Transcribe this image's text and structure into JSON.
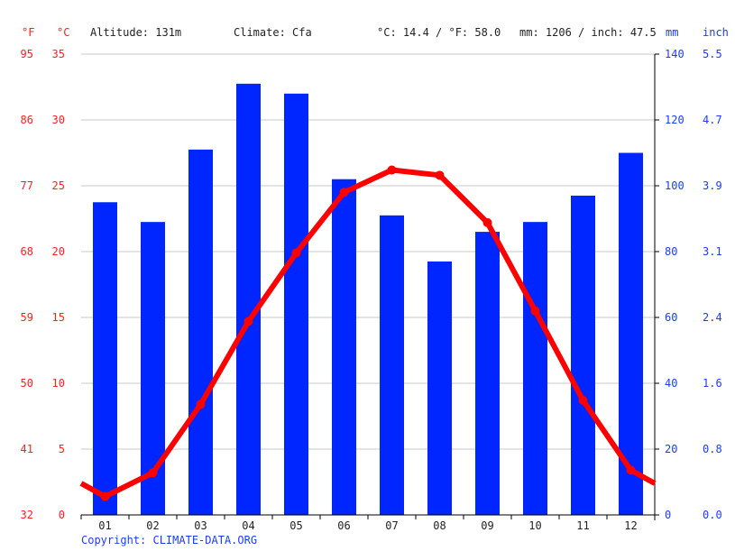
{
  "header": {
    "unit_f": "°F",
    "unit_c": "°C",
    "altitude": "Altitude: 131m",
    "climate": "Climate: Cfa",
    "temp_avg": "°C: 14.4 / °F: 58.0",
    "precip_total": "mm: 1206 / inch: 47.5",
    "unit_mm": "mm",
    "unit_inch": "inch"
  },
  "footer": {
    "copyright": "Copyright: CLIMATE-DATA.ORG"
  },
  "colors": {
    "temperature": "#ff0000",
    "precipitation": "#0026ff",
    "grid": "#c8c8c8",
    "axis": "#000000"
  },
  "chart_data": {
    "type": "bar+line",
    "title": "",
    "categories": [
      "01",
      "02",
      "03",
      "04",
      "05",
      "06",
      "07",
      "08",
      "09",
      "10",
      "11",
      "12"
    ],
    "series": [
      {
        "name": "Precipitation (mm)",
        "type": "bar",
        "axis": "right",
        "values": [
          95,
          89,
          111,
          131,
          128,
          102,
          91,
          77,
          86,
          89,
          97,
          110
        ]
      },
      {
        "name": "Temperature (°C)",
        "type": "line",
        "axis": "left",
        "values": [
          1.4,
          3.2,
          8.4,
          14.7,
          19.9,
          24.5,
          26.2,
          25.8,
          22.2,
          15.5,
          8.7,
          3.4
        ]
      }
    ],
    "left_axis_c": {
      "label": "°C",
      "ticks": [
        0,
        5,
        10,
        15,
        20,
        25,
        30,
        35
      ],
      "ylim": [
        0,
        35
      ]
    },
    "left_axis_f": {
      "label": "°F",
      "ticks": [
        32,
        41,
        50,
        59,
        68,
        77,
        86,
        95
      ]
    },
    "right_axis_mm": {
      "label": "mm",
      "ticks": [
        0,
        20,
        40,
        60,
        80,
        100,
        120,
        140
      ],
      "ylim": [
        0,
        140
      ]
    },
    "right_axis_inch": {
      "label": "inch",
      "ticks": [
        "0.0",
        "0.8",
        "1.6",
        "2.4",
        "3.1",
        "3.9",
        "4.7",
        "5.5"
      ]
    },
    "grid": true,
    "legend": "none"
  }
}
